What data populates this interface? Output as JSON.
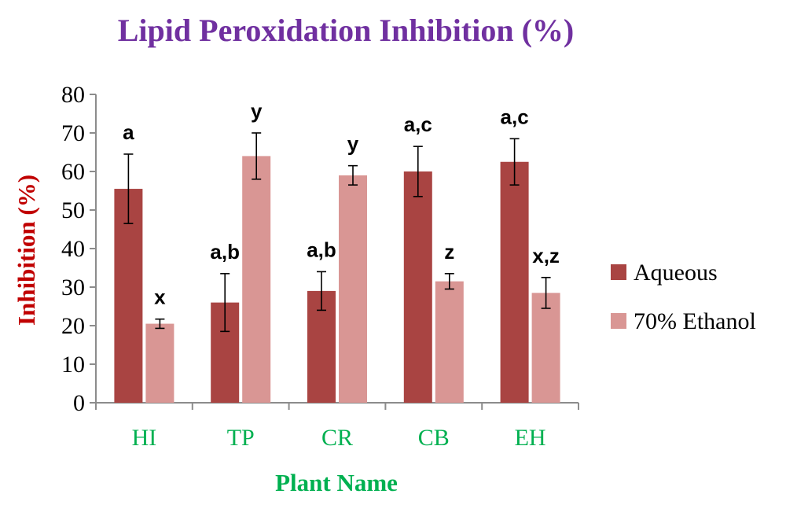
{
  "colors": {
    "title": "#7030a0",
    "axis_label": "#c00000",
    "category_label": "#00b050",
    "aqueous": "#a94442",
    "ethanol": "#d99694",
    "axis": "#8c8c8c",
    "error_bar": "#000000"
  },
  "chart_data": {
    "type": "bar",
    "title": "Lipid Peroxidation Inhibition (%)",
    "xlabel": "Plant Name",
    "ylabel": "Inhibition (%)",
    "ylim": [
      0,
      80
    ],
    "yticks": [
      0,
      10,
      20,
      30,
      40,
      50,
      60,
      70,
      80
    ],
    "grid": false,
    "legend_position": "right",
    "categories": [
      "HI",
      "TP",
      "CR",
      "CB",
      "EH"
    ],
    "series": [
      {
        "name": "Aqueous",
        "values": [
          55.5,
          26,
          29,
          60,
          62.5
        ],
        "errors": [
          9,
          7.5,
          5,
          6.5,
          6
        ],
        "labels": [
          "a",
          "a,b",
          "a,b",
          "a,c",
          "a,c"
        ]
      },
      {
        "name": "70% Ethanol",
        "values": [
          20.5,
          64,
          59,
          31.5,
          28.5
        ],
        "errors": [
          1.2,
          6,
          2.5,
          2,
          4
        ],
        "labels": [
          "x",
          "y",
          "y",
          "z",
          "x,z"
        ]
      }
    ]
  }
}
